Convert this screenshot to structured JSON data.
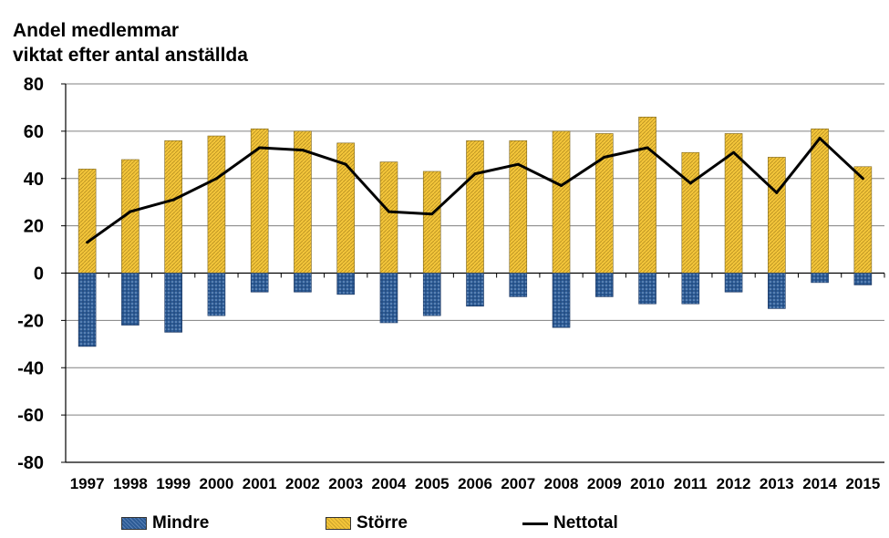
{
  "chart_data": {
    "type": "bar",
    "title_lines": [
      "Andel medlemmar",
      "viktat efter antal anställda"
    ],
    "categories": [
      "1997",
      "1998",
      "1999",
      "2000",
      "2001",
      "2002",
      "2003",
      "2004",
      "2005",
      "2006",
      "2007",
      "2008",
      "2009",
      "2010",
      "2011",
      "2012",
      "2013",
      "2014",
      "2015"
    ],
    "series": [
      {
        "name": "Mindre",
        "kind": "bar",
        "color": "#2e5a8c",
        "values": [
          -31,
          -22,
          -25,
          -18,
          -8,
          -8,
          -9,
          -21,
          -18,
          -14,
          -10,
          -23,
          -10,
          -13,
          -13,
          -8,
          -15,
          -4,
          -5
        ]
      },
      {
        "name": "Större",
        "kind": "bar",
        "color": "#f0c23c",
        "values": [
          44,
          48,
          56,
          58,
          61,
          60,
          55,
          47,
          43,
          56,
          56,
          60,
          59,
          66,
          51,
          59,
          49,
          61,
          45
        ]
      },
      {
        "name": "Nettotal",
        "kind": "line",
        "color": "#000000",
        "values": [
          13,
          26,
          31,
          40,
          53,
          52,
          46,
          26,
          25,
          42,
          46,
          37,
          49,
          53,
          38,
          51,
          34,
          57,
          40
        ]
      }
    ],
    "ylim": [
      -80,
      80
    ],
    "yticks": [
      "80",
      "60",
      "40",
      "20",
      "0",
      "-20",
      "-40",
      "-60",
      "-80"
    ],
    "ytick_values": [
      80,
      60,
      40,
      20,
      0,
      -20,
      -40,
      -60,
      -80
    ],
    "grid": true,
    "legend_position": "bottom"
  }
}
